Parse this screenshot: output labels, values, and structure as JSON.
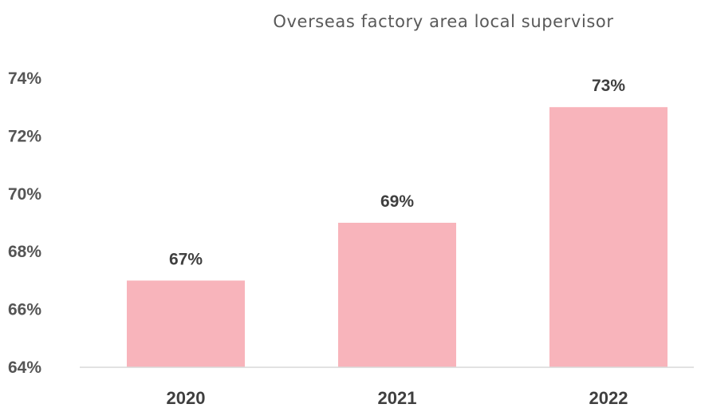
{
  "chart_data": {
    "type": "bar",
    "title": "Overseas factory area local supervisor",
    "categories": [
      "2020",
      "2021",
      "2022"
    ],
    "values": [
      67,
      69,
      73
    ],
    "data_labels": [
      "67%",
      "69%",
      "73%"
    ],
    "ylim": [
      64,
      74
    ],
    "yticks": [
      {
        "value": 74,
        "label": "74%"
      },
      {
        "value": 72,
        "label": "72%"
      },
      {
        "value": 70,
        "label": "70%"
      },
      {
        "value": 68,
        "label": "68%"
      },
      {
        "value": 66,
        "label": "66%"
      },
      {
        "value": 64,
        "label": "64%"
      }
    ],
    "grid": false,
    "legend": "none",
    "bar_color": "#f8b4bb",
    "xlabel": "",
    "ylabel": ""
  }
}
